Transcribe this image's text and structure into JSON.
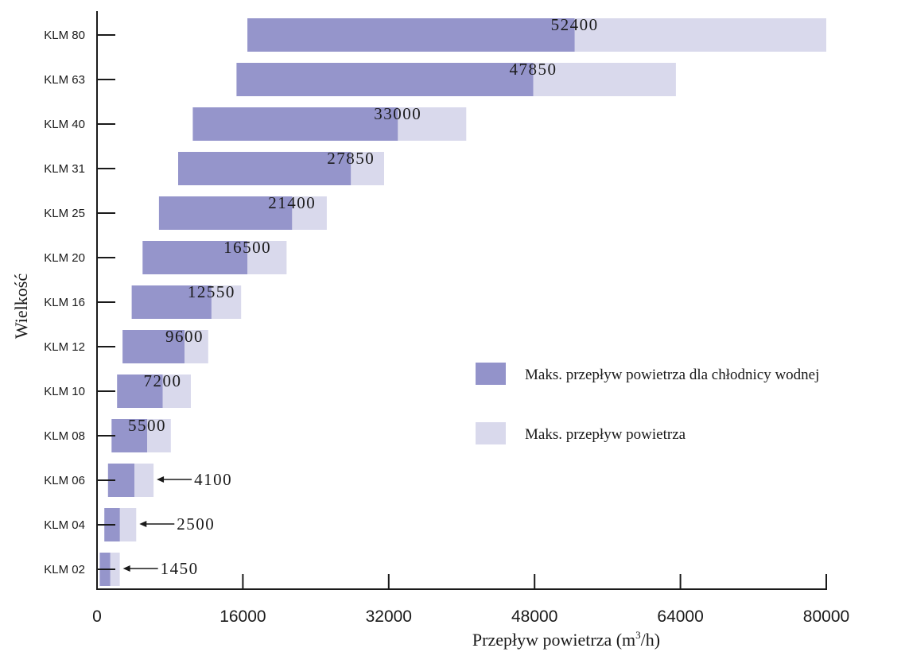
{
  "chart_data": {
    "type": "bar",
    "orientation": "horizontal",
    "stacked_overlay": true,
    "title": "",
    "xlabel": "Przepływ powietrza (m",
    "xlabel_sup": "3",
    "xlabel_tail": "/h)",
    "ylabel": "Wielkość",
    "xlim": [
      0,
      80000
    ],
    "x_ticks": [
      0,
      16000,
      32000,
      48000,
      64000,
      80000
    ],
    "x_tick_labels": [
      "0",
      "16000",
      "32000",
      "48000",
      "64000",
      "80000"
    ],
    "categories": [
      "KLM 80",
      "KLM 63",
      "KLM 40",
      "KLM 31",
      "KLM 25",
      "KLM 20",
      "KLM 16",
      "KLM 12",
      "KLM 10",
      "KLM 08",
      "KLM 06",
      "KLM 04",
      "KLM 02"
    ],
    "series": [
      {
        "name": "Maks. przepływ powietrza dla chłodnicy wodnej",
        "color": "#9595cb",
        "start": [
          16500,
          15300,
          10500,
          8900,
          6800,
          5000,
          3800,
          2800,
          2200,
          1600,
          1200,
          800,
          300
        ],
        "values": [
          52400,
          47850,
          33000,
          27850,
          21400,
          16500,
          12550,
          9600,
          7200,
          5500,
          4100,
          2500,
          1450
        ]
      },
      {
        "name": "Maks. przepływ powietrza",
        "color": "#d9d9ec",
        "start": [
          52400,
          47850,
          33000,
          27850,
          21400,
          16500,
          12550,
          9600,
          7200,
          5500,
          4100,
          2500,
          1450
        ],
        "values": [
          80000,
          63500,
          40500,
          31500,
          25200,
          20800,
          15800,
          12200,
          10300,
          8100,
          6200,
          4300,
          2500
        ]
      }
    ],
    "data_labels": [
      "52400",
      "47850",
      "33000",
      "27850",
      "21400",
      "16500",
      "12550",
      "9600",
      "7200",
      "5500",
      "4100",
      "2500",
      "1450"
    ],
    "arrow_labels": [
      "KLM 06",
      "KLM 04",
      "KLM 02"
    ],
    "grid": false,
    "legend_position": "right"
  }
}
